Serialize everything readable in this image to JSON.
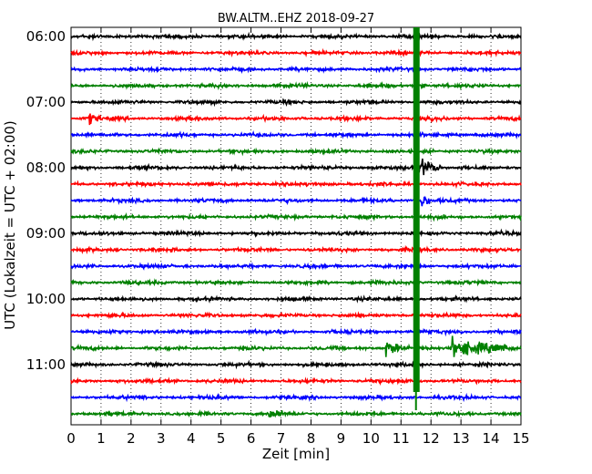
{
  "chart_data": {
    "type": "line",
    "title": "BW.ALTM..EHZ 2018-09-27",
    "xlabel": "Zeit  [min]",
    "ylabel": "UTC (Lokalzeit = UTC + 02:00)",
    "xlim": [
      0,
      15
    ],
    "x_ticks": [
      "0",
      "1",
      "2",
      "3",
      "4",
      "5",
      "6",
      "7",
      "8",
      "9",
      "10",
      "11",
      "12",
      "13",
      "14",
      "15"
    ],
    "y_ticks": [
      "06:00",
      "07:00",
      "08:00",
      "09:00",
      "10:00",
      "11:00"
    ],
    "row_interval_min": 15,
    "rows": 24,
    "grid": true,
    "line_colors": [
      "#000000",
      "#ff0000",
      "#0000ff",
      "#008000"
    ],
    "events": [
      {
        "row": 5,
        "x_min": 0.6,
        "amplitude": 0.45,
        "duration_min": 0.4
      },
      {
        "row": 3,
        "x_min": 11.5,
        "amplitude": 0.5,
        "duration_min": 0.3
      },
      {
        "row": 8,
        "x_min": 11.6,
        "amplitude": 0.9,
        "duration_min": 0.8
      },
      {
        "row": 10,
        "x_min": 11.7,
        "amplitude": 0.7,
        "duration_min": 0.3
      },
      {
        "row": 19,
        "x_min": 10.5,
        "amplitude": 0.8,
        "duration_min": 0.6
      },
      {
        "row": 19,
        "x_min": 12.7,
        "amplitude": 0.9,
        "duration_min": 1.8
      },
      {
        "row": 23,
        "x_min": 6.6,
        "amplitude": 0.45,
        "duration_min": 0.5
      }
    ],
    "green_spike_x_min": 11.5
  }
}
